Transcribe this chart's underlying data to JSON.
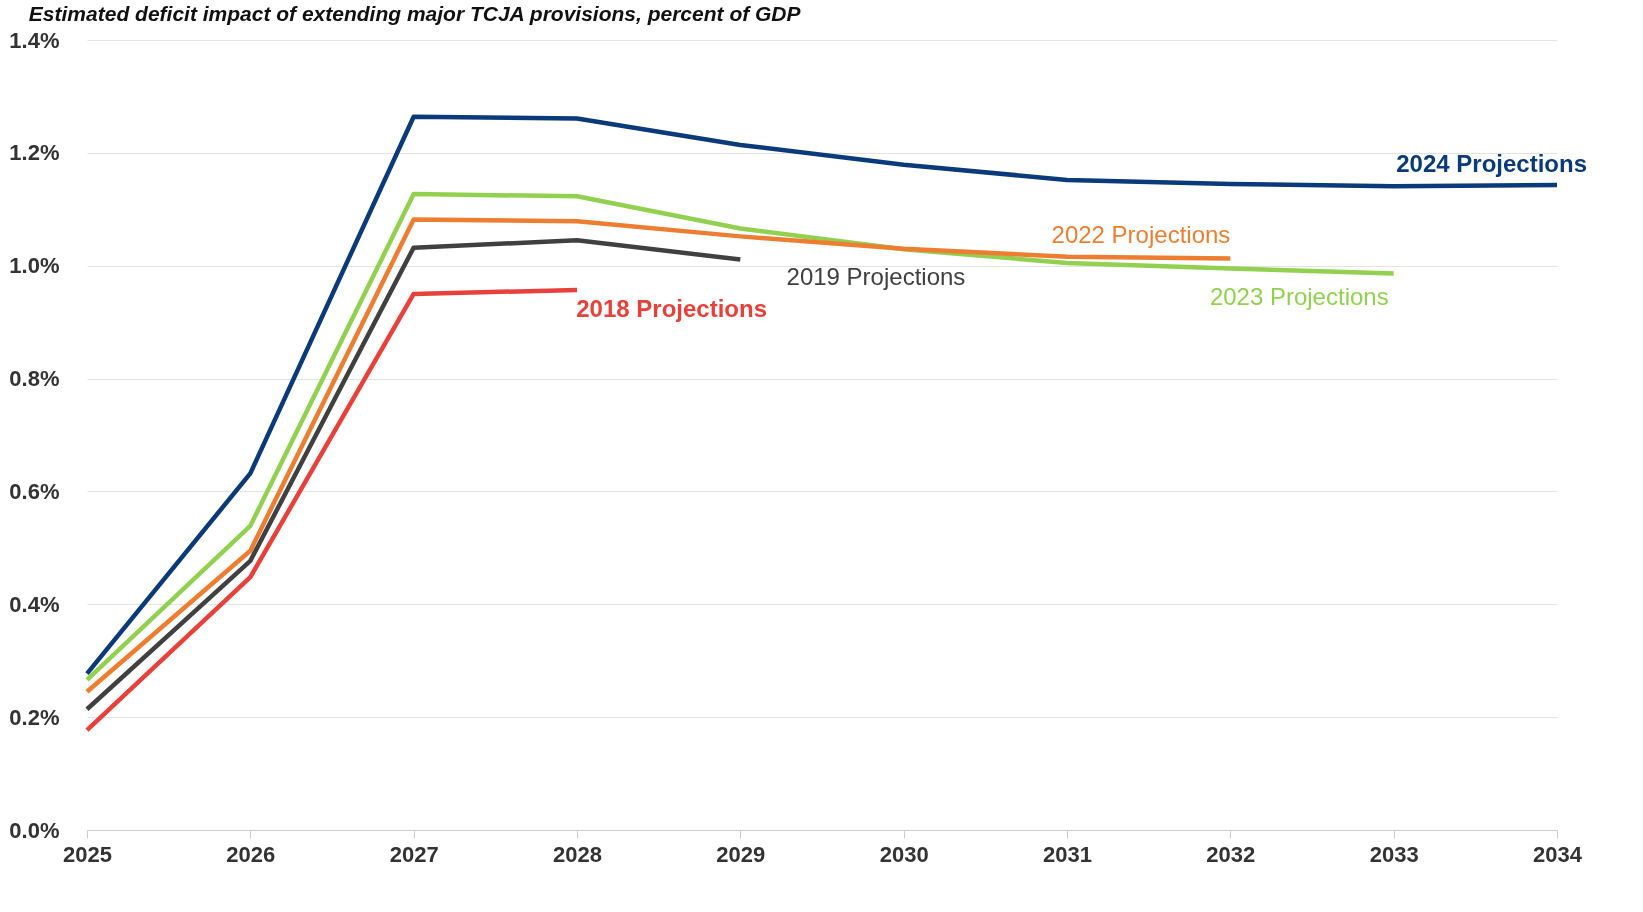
{
  "chart_data": {
    "type": "line",
    "title": "Estimated deficit impact of extending major TCJA provisions, percent of GDP",
    "x": [
      2025,
      2026,
      2027,
      2028,
      2029,
      2030,
      2031,
      2032,
      2033,
      2034
    ],
    "xlim": [
      2025,
      2034
    ],
    "xticks": [
      2025,
      2026,
      2027,
      2028,
      2029,
      2030,
      2031,
      2032,
      2033,
      2034
    ],
    "ylim": [
      0,
      1.4
    ],
    "yticks": [
      {
        "value": 0,
        "label": "0.0%"
      },
      {
        "value": 0.2,
        "label": "0.2%"
      },
      {
        "value": 0.4,
        "label": "0.4%"
      },
      {
        "value": 0.6,
        "label": "0.6%"
      },
      {
        "value": 0.8,
        "label": "0.8%"
      },
      {
        "value": 1.0,
        "label": "1.0%"
      },
      {
        "value": 1.2,
        "label": "1.2%"
      },
      {
        "value": 1.4,
        "label": "1.4%"
      }
    ],
    "grid": "y",
    "legend": false,
    "marker": "none",
    "line_style": "solid",
    "series": [
      {
        "name": "2024 Projections",
        "color": "#0b3a7a",
        "values": [
          0.277,
          0.632,
          1.264,
          1.261,
          1.214,
          1.179,
          1.152,
          1.145,
          1.141,
          1.143
        ]
      },
      {
        "name": "2023 Projections",
        "color": "#92d050",
        "values": [
          0.266,
          0.539,
          1.127,
          1.123,
          1.066,
          1.029,
          1.005,
          0.995,
          0.986,
          null
        ]
      },
      {
        "name": "2022 Projections",
        "color": "#ed7d31",
        "values": [
          0.245,
          0.495,
          1.082,
          1.079,
          1.052,
          1.03,
          1.016,
          1.013,
          null,
          null
        ]
      },
      {
        "name": "2019 Projections",
        "color": "#404040",
        "values": [
          0.214,
          0.477,
          1.032,
          1.045,
          1.011,
          null,
          null,
          null,
          null,
          null
        ]
      },
      {
        "name": "2018 Projections",
        "color": "#e8403a",
        "values": [
          0.177,
          0.448,
          0.95,
          0.957,
          null,
          null,
          null,
          null,
          null,
          null
        ]
      }
    ]
  }
}
